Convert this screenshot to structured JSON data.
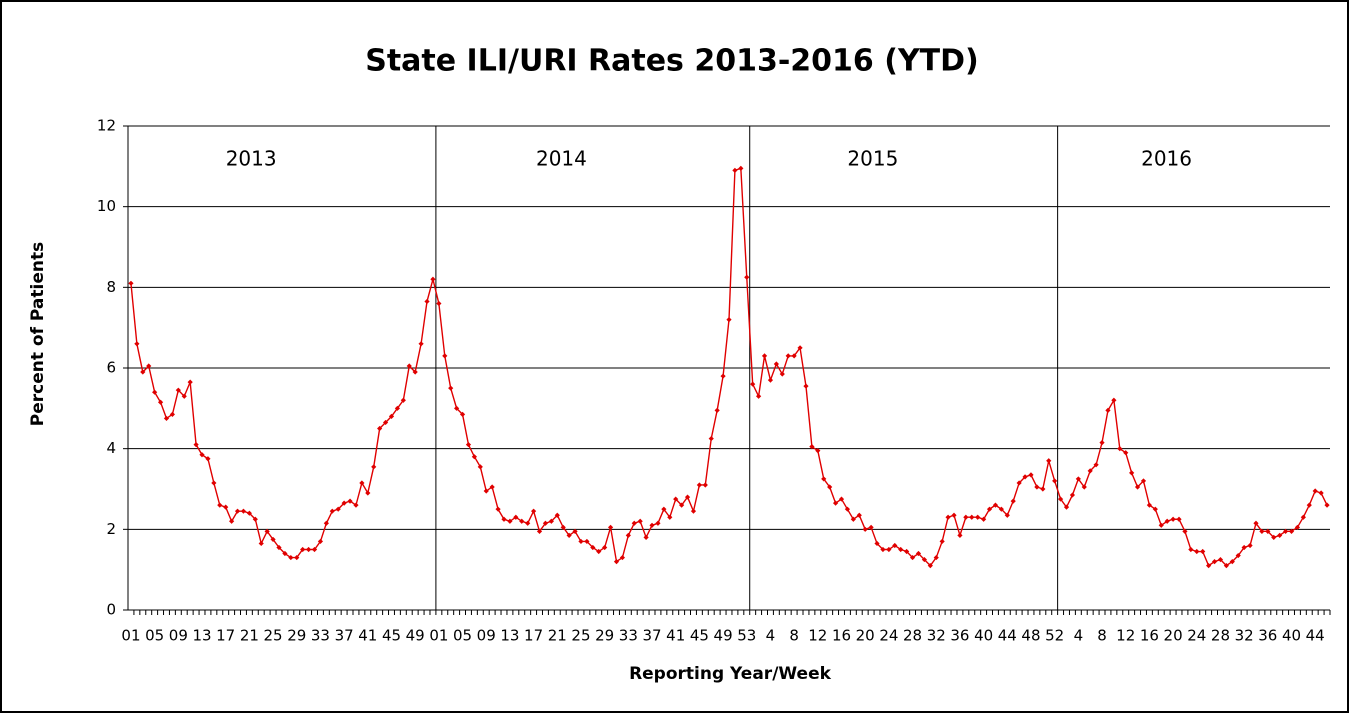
{
  "chart_data": {
    "type": "line",
    "title": "State ILI/URI Rates 2013-2016 (YTD)",
    "x_label": "Reporting Year/Week",
    "y_label": "Percent of Patients",
    "annotations": [
      "2013",
      "2014",
      "2015",
      "2016"
    ],
    "categories": [
      "01",
      null,
      null,
      null,
      "05",
      null,
      null,
      null,
      "09",
      null,
      null,
      null,
      "13",
      null,
      null,
      null,
      "17",
      null,
      null,
      null,
      "21",
      null,
      null,
      null,
      "25",
      null,
      null,
      null,
      "29",
      null,
      null,
      null,
      "33",
      null,
      null,
      null,
      "37",
      null,
      null,
      null,
      "41",
      null,
      null,
      null,
      "45",
      null,
      null,
      null,
      "49",
      null,
      null,
      null,
      "01",
      null,
      null,
      null,
      "05",
      null,
      null,
      null,
      "09",
      null,
      null,
      null,
      "13",
      null,
      null,
      null,
      "17",
      null,
      null,
      null,
      "21",
      null,
      null,
      null,
      "25",
      null,
      null,
      null,
      "29",
      null,
      null,
      null,
      "33",
      null,
      null,
      null,
      "37",
      null,
      null,
      null,
      "41",
      null,
      null,
      null,
      "45",
      null,
      null,
      null,
      "49",
      null,
      null,
      null,
      "53",
      null,
      null,
      null,
      "4",
      null,
      null,
      null,
      "8",
      null,
      null,
      null,
      "12",
      null,
      null,
      null,
      "16",
      null,
      null,
      null,
      "20",
      null,
      null,
      null,
      "24",
      null,
      null,
      null,
      "28",
      null,
      null,
      null,
      "32",
      null,
      null,
      null,
      "36",
      null,
      null,
      null,
      "40",
      null,
      null,
      null,
      "44",
      null,
      null,
      null,
      "48",
      null,
      null,
      null,
      "52",
      null,
      null,
      null,
      "4",
      null,
      null,
      null,
      "8",
      null,
      null,
      null,
      "12",
      null,
      null,
      null,
      "16",
      null,
      null,
      null,
      "20",
      null,
      null,
      null,
      "24",
      null,
      null,
      null,
      "28",
      null,
      null,
      null,
      "32",
      null,
      null,
      null,
      "36",
      null,
      null,
      null,
      "40",
      null,
      null,
      null,
      "44",
      null,
      null
    ],
    "series": [
      {
        "name": "ILI/URI",
        "color": "#e00000",
        "values": [
          8.1,
          6.6,
          5.9,
          6.05,
          5.4,
          5.15,
          4.75,
          4.85,
          5.45,
          5.3,
          5.65,
          4.1,
          3.85,
          3.75,
          3.15,
          2.6,
          2.55,
          2.2,
          2.45,
          2.45,
          2.4,
          2.25,
          1.65,
          1.95,
          1.75,
          1.55,
          1.4,
          1.3,
          1.3,
          1.5,
          1.5,
          1.5,
          1.7,
          2.15,
          2.45,
          2.5,
          2.65,
          2.7,
          2.6,
          3.15,
          2.9,
          3.55,
          4.5,
          4.65,
          4.8,
          5.0,
          5.2,
          6.05,
          5.9,
          6.6,
          7.65,
          8.2,
          7.6,
          6.3,
          5.5,
          5.0,
          4.85,
          4.1,
          3.8,
          3.55,
          2.95,
          3.05,
          2.5,
          2.25,
          2.2,
          2.3,
          2.2,
          2.15,
          2.45,
          1.95,
          2.15,
          2.2,
          2.35,
          2.05,
          1.85,
          1.95,
          1.7,
          1.7,
          1.55,
          1.45,
          1.55,
          2.05,
          1.2,
          1.3,
          1.85,
          2.15,
          2.2,
          1.8,
          2.1,
          2.15,
          2.5,
          2.3,
          2.75,
          2.6,
          2.8,
          2.45,
          3.1,
          3.1,
          4.25,
          4.95,
          5.8,
          7.2,
          10.9,
          10.95,
          8.25,
          5.6,
          5.3,
          6.3,
          5.7,
          6.1,
          5.85,
          6.3,
          6.3,
          6.5,
          5.55,
          4.05,
          3.95,
          3.25,
          3.05,
          2.65,
          2.75,
          2.5,
          2.25,
          2.35,
          2.0,
          2.05,
          1.65,
          1.5,
          1.5,
          1.6,
          1.5,
          1.45,
          1.3,
          1.4,
          1.25,
          1.1,
          1.3,
          1.7,
          2.3,
          2.35,
          1.85,
          2.3,
          2.3,
          2.3,
          2.25,
          2.5,
          2.6,
          2.5,
          2.35,
          2.7,
          3.15,
          3.3,
          3.35,
          3.05,
          3.0,
          3.7,
          3.2,
          2.75,
          2.55,
          2.85,
          3.25,
          3.05,
          3.45,
          3.6,
          4.15,
          4.95,
          5.2,
          4.0,
          3.9,
          3.4,
          3.05,
          3.2,
          2.6,
          2.5,
          2.1,
          2.2,
          2.25,
          2.25,
          1.95,
          1.5,
          1.45,
          1.45,
          1.1,
          1.2,
          1.25,
          1.1,
          1.2,
          1.35,
          1.55,
          1.6,
          2.15,
          1.95,
          1.95,
          1.8,
          1.85,
          1.95,
          1.95,
          2.05,
          2.3,
          2.6,
          2.95,
          2.9,
          2.6
        ]
      }
    ],
    "ylim": [
      0,
      12
    ],
    "yticks": [
      0,
      2,
      4,
      6,
      8,
      10,
      12
    ],
    "grid": true
  }
}
